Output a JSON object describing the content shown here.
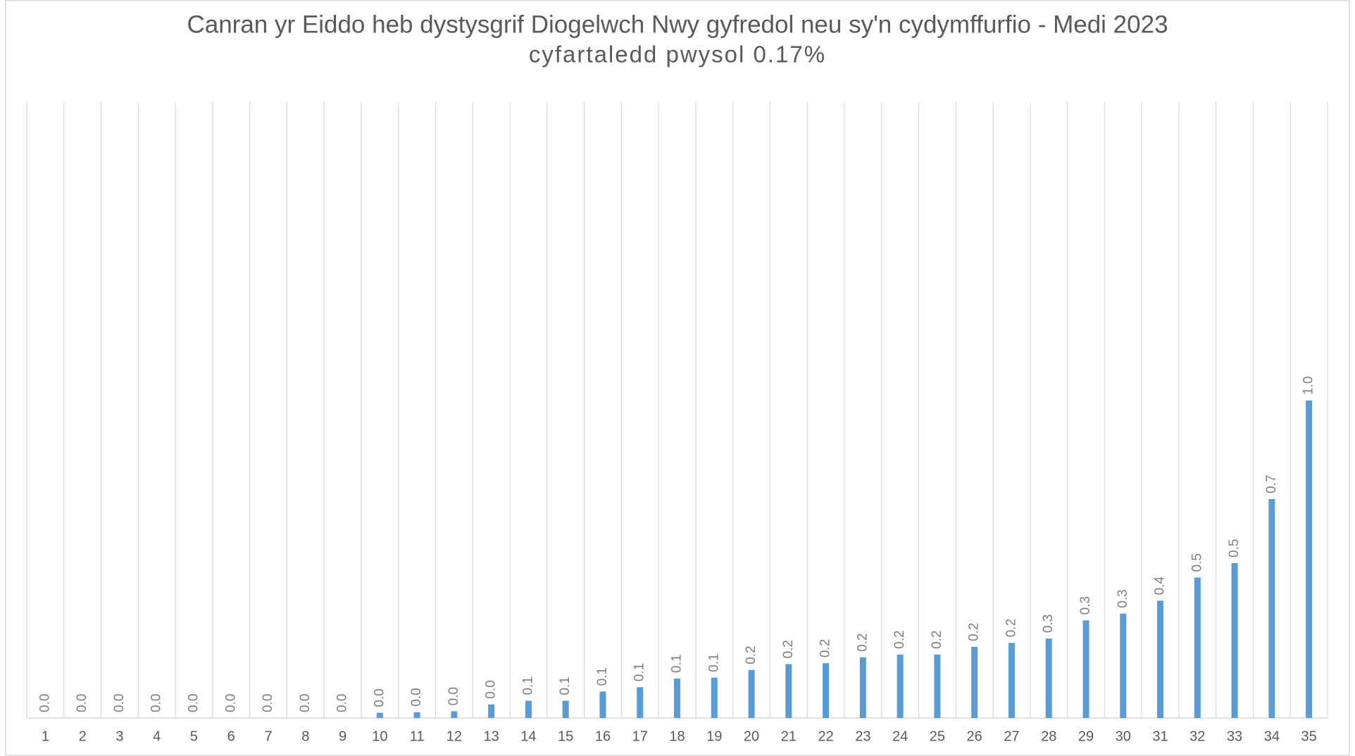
{
  "chart_data": {
    "type": "bar",
    "title": "Canran yr Eiddo heb dystysgrif Diogelwch Nwy gyfredol neu sy'n cydymffurfio - Medi 2023",
    "subtitle": "cyfartaledd pwysol 0.17%",
    "categories": [
      "1",
      "2",
      "3",
      "4",
      "5",
      "6",
      "7",
      "8",
      "9",
      "10",
      "11",
      "12",
      "13",
      "14",
      "15",
      "16",
      "17",
      "18",
      "19",
      "20",
      "21",
      "22",
      "23",
      "24",
      "25",
      "26",
      "27",
      "28",
      "29",
      "30",
      "31",
      "32",
      "33",
      "34",
      "35"
    ],
    "values": [
      0,
      0,
      0,
      0,
      0,
      0,
      0,
      0,
      0,
      0.017,
      0.019,
      0.022,
      0.044,
      0.056,
      0.056,
      0.086,
      0.1,
      0.128,
      0.131,
      0.156,
      0.175,
      0.178,
      0.197,
      0.206,
      0.206,
      0.231,
      0.244,
      0.258,
      0.317,
      0.339,
      0.381,
      0.456,
      0.503,
      0.711,
      1.031
    ],
    "value_labels": [
      "0.0",
      "0.0",
      "0.0",
      "0.0",
      "0.0",
      "0.0",
      "0.0",
      "0.0",
      "0.0",
      "0.0",
      "0.0",
      "0.0",
      "0.0",
      "0.1",
      "0.1",
      "0.1",
      "0.1",
      "0.1",
      "0.1",
      "0.2",
      "0.2",
      "0.2",
      "0.2",
      "0.2",
      "0.2",
      "0.2",
      "0.2",
      "0.3",
      "0.3",
      "0.3",
      "0.4",
      "0.5",
      "0.5",
      "0.7",
      "1.0"
    ],
    "color": "#5b9bd5",
    "ylim": [
      0,
      2
    ],
    "grid": true
  }
}
